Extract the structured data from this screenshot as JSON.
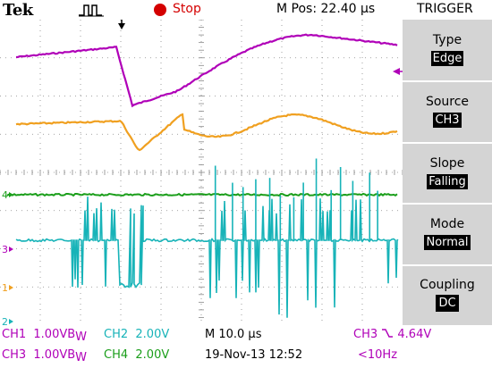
{
  "header": {
    "brand": "Tek",
    "acquire_icon": "pulse-waveform-icon",
    "run_state": "Stop",
    "run_state_color": "#d40000",
    "m_pos": "M Pos: 22.40 µs",
    "menu_title": "TRIGGER"
  },
  "menu": {
    "items": [
      {
        "label": "Type",
        "value": "Edge"
      },
      {
        "label": "Source",
        "value": "CH3"
      },
      {
        "label": "Slope",
        "value": "Falling"
      },
      {
        "label": "Mode",
        "value": "Normal"
      },
      {
        "label": "Coupling",
        "value": "DC"
      }
    ]
  },
  "markers": {
    "trigger_position_icon": "down-arrow-icon",
    "trigger_level_icon": "left-arrow-icon",
    "ch4": "4",
    "ch3": "3",
    "ch1": "1",
    "ch2": "2"
  },
  "status": {
    "ch1_name": "CH1",
    "ch1_scale": "1.00V",
    "ch1_suffix": "B",
    "ch1_bw": "W",
    "ch2_name": "CH2",
    "ch2_scale": "2.00V",
    "time_scale": "M 10.0 µs",
    "trigger_source": "CH3",
    "trigger_slope_icon": "falling-edge-icon",
    "trigger_level": "4.64V",
    "ch3_name": "CH3",
    "ch3_scale": "1.00V",
    "ch3_suffix": "B",
    "ch3_bw": "W",
    "ch4_name": "CH4",
    "ch4_scale": "2.00V",
    "datetime": "19-Nov-13 12:52",
    "frequency": "<10Hz"
  },
  "colors": {
    "ch1": "#b000b8",
    "ch2": "#17b3b8",
    "ch3": "#f0a020",
    "ch4": "#1a9e1a",
    "grid": "#888888",
    "menu_bg": "#d4d4d4"
  }
}
